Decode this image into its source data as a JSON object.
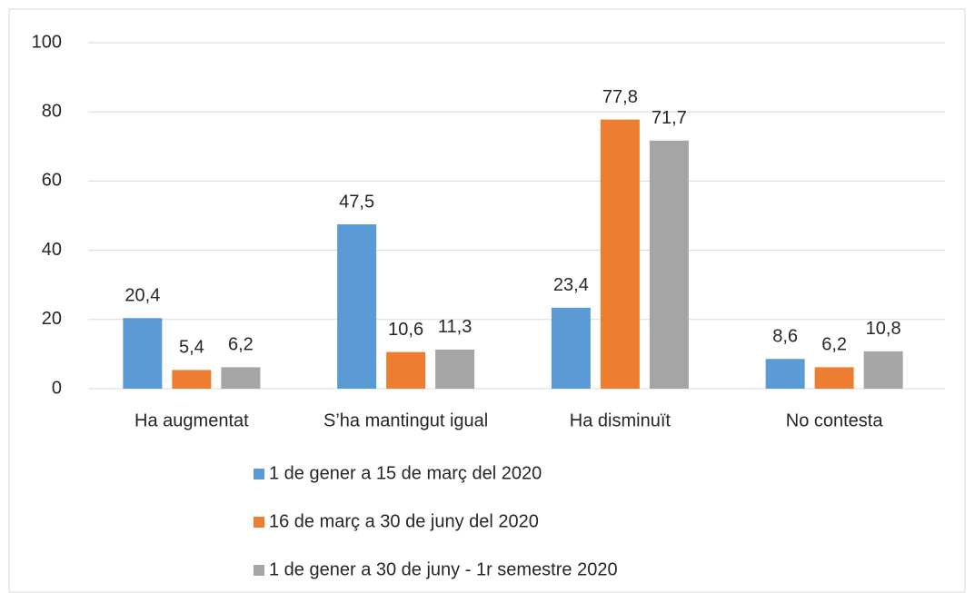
{
  "chart_data": {
    "type": "bar",
    "categories": [
      "Ha augmentat",
      "S’ha mantingut igual",
      "Ha disminuït",
      "No contesta"
    ],
    "series": [
      {
        "name": "1 de gener a 15 de març del 2020",
        "color": "#5b9bd5",
        "values": [
          20.4,
          47.5,
          23.4,
          8.6
        ],
        "value_labels": [
          "20,4",
          "47,5",
          "23,4",
          "8,6"
        ]
      },
      {
        "name": "16 de març a 30 de juny del 2020",
        "color": "#ed7d31",
        "values": [
          5.4,
          10.6,
          77.8,
          6.2
        ],
        "value_labels": [
          "5,4",
          "10,6",
          "77,8",
          "6,2"
        ]
      },
      {
        "name": "1 de gener a 30 de juny - 1r semestre 2020",
        "color": "#a5a5a5",
        "values": [
          6.2,
          11.3,
          71.7,
          10.8
        ],
        "value_labels": [
          "6,2",
          "11,3",
          "71,7",
          "10,8"
        ]
      }
    ],
    "ylim": [
      0,
      100
    ],
    "yticks": [
      0,
      20,
      40,
      60,
      80,
      100
    ],
    "grid": true,
    "legend": "bottom"
  }
}
